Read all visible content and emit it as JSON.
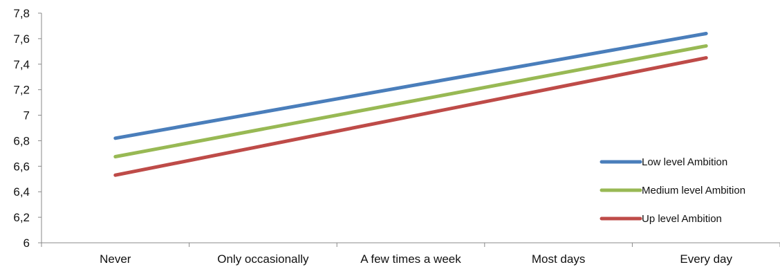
{
  "chart_data": {
    "type": "line",
    "title": "",
    "xlabel": "",
    "ylabel": "",
    "categories": [
      "Never",
      "Only occasionally",
      "A few times a week",
      "Most days",
      "Every day"
    ],
    "ylim": [
      6,
      7.8
    ],
    "yticks": [
      6,
      6.2,
      6.4,
      6.6,
      6.8,
      7,
      7.2,
      7.4,
      7.6,
      7.8
    ],
    "ytick_labels": [
      "6",
      "6,2",
      "6,4",
      "6,6",
      "6,8",
      "7",
      "7,2",
      "7,4",
      "7,6",
      "7,8"
    ],
    "grid": false,
    "legend_position": "right",
    "series": [
      {
        "name": "Low level Ambition",
        "color": "#4a7ebb",
        "values": [
          6.82,
          7.025,
          7.23,
          7.435,
          7.64
        ]
      },
      {
        "name": "Medium level Ambition",
        "color": "#98b954",
        "values": [
          6.675,
          6.892,
          7.109,
          7.326,
          7.543
        ]
      },
      {
        "name": "Up level Ambition",
        "color": "#be4b48",
        "values": [
          6.53,
          6.76,
          6.99,
          7.22,
          7.45
        ]
      }
    ]
  }
}
